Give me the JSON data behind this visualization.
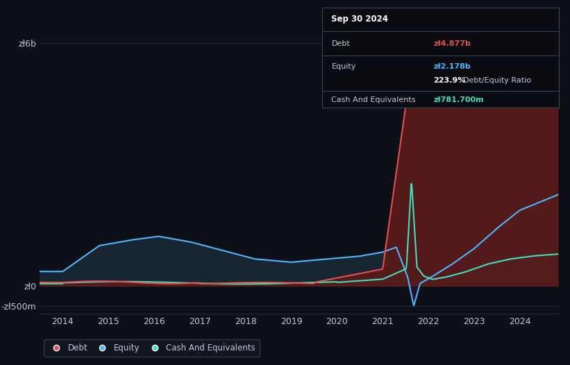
{
  "background_color": "#0d1117",
  "plot_bg_color": "#0d1117",
  "tooltip": {
    "date": "Sep 30 2024",
    "debt_label": "Debt",
    "debt_value": "zł4.877b",
    "equity_label": "Equity",
    "equity_value": "zł2.178b",
    "ratio_bold": "223.9%",
    "ratio_text": " Debt/Equity Ratio",
    "cash_label": "Cash And Equivalents",
    "cash_value": "zł781.700m"
  },
  "debt_color": "#e05252",
  "equity_color": "#4db8ff",
  "cash_color": "#40e0c0",
  "debt_fill_color": "#5c1a1a",
  "equity_fill_color": "#1a2a3a",
  "grid_color": "#2a3040",
  "text_color": "#c0c8d8",
  "ytick_labels": [
    "-zł500m",
    "zł0",
    "zł6b"
  ],
  "ytick_values": [
    -500,
    0,
    6000
  ],
  "xlabel_years": [
    2014,
    2015,
    2016,
    2017,
    2018,
    2019,
    2020,
    2021,
    2022,
    2023,
    2024
  ],
  "xlim": [
    2013.5,
    2024.85
  ],
  "ylim": [
    -700,
    6800
  ],
  "legend_items": [
    "Debt",
    "Equity",
    "Cash And Equivalents"
  ]
}
